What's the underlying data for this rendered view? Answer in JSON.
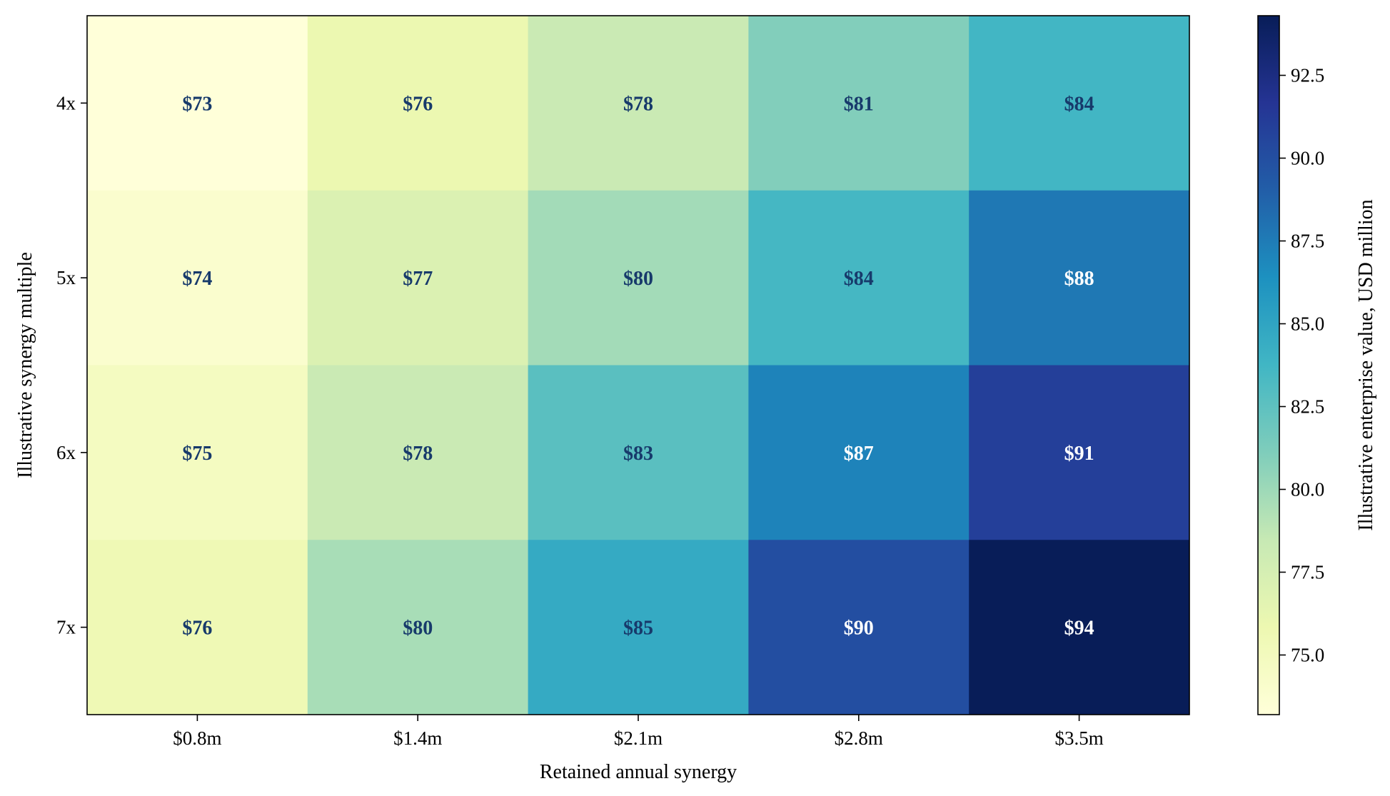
{
  "chart_data": {
    "type": "heatmap",
    "title": "",
    "xlabel": "Retained annual synergy",
    "ylabel": "Illustrative synergy multiple",
    "x_categories": [
      "$0.8m",
      "$1.4m",
      "$2.1m",
      "$2.8m",
      "$3.5m"
    ],
    "y_categories": [
      "4x",
      "5x",
      "6x",
      "7x"
    ],
    "values": [
      [
        73.2,
        75.9,
        78.3,
        81.0,
        83.7
      ],
      [
        73.9,
        77.1,
        79.8,
        83.6,
        87.7
      ],
      [
        74.8,
        78.3,
        82.7,
        87.1,
        91.0
      ],
      [
        75.6,
        79.6,
        84.6,
        90.0,
        94.3
      ]
    ],
    "cell_labels": [
      [
        "$73",
        "$76",
        "$78",
        "$81",
        "$84"
      ],
      [
        "$74",
        "$77",
        "$80",
        "$84",
        "$88"
      ],
      [
        "$75",
        "$78",
        "$83",
        "$87",
        "$91"
      ],
      [
        "$76",
        "$80",
        "$85",
        "$90",
        "$94"
      ]
    ],
    "colorbar": {
      "label": "Illustrative enterprise value, USD million",
      "range": [
        73.2,
        94.3
      ],
      "ticks": [
        75.0,
        77.5,
        80.0,
        82.5,
        85.0,
        87.5,
        90.0,
        92.5
      ],
      "tick_labels": [
        "75.0",
        "77.5",
        "80.0",
        "82.5",
        "85.0",
        "87.5",
        "90.0",
        "92.5"
      ],
      "colormap": "YlGnBu"
    },
    "colors": {
      "cell_text_dark": "#173a6b",
      "cell_text_light": "#ffffff",
      "axis": "#000000"
    }
  }
}
